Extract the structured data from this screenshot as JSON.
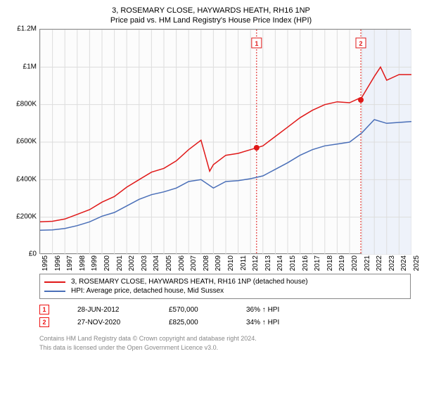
{
  "title_line1": "3, ROSEMARY CLOSE, HAYWARDS HEATH, RH16 1NP",
  "title_line2": "Price paid vs. HM Land Registry's House Price Index (HPI)",
  "chart": {
    "type": "line",
    "background_color": "#fcfcfc",
    "grid_color": "#dddddd",
    "axis_color": "#888888",
    "shaded_region": {
      "x_start": 2021,
      "x_end": 2025,
      "fill": "#eef2fa"
    },
    "xlim": [
      1995,
      2025
    ],
    "ylim": [
      0,
      1200000
    ],
    "ytick_step": 200000,
    "y_ticks": [
      "£0",
      "£200K",
      "£400K",
      "£600K",
      "£800K",
      "£1M",
      "£1.2M"
    ],
    "x_ticks": [
      "1995",
      "1996",
      "1997",
      "1998",
      "1999",
      "2000",
      "2001",
      "2002",
      "2003",
      "2004",
      "2005",
      "2006",
      "2007",
      "2008",
      "2009",
      "2010",
      "2011",
      "2012",
      "2013",
      "2014",
      "2015",
      "2016",
      "2017",
      "2018",
      "2019",
      "2020",
      "2021",
      "2022",
      "2023",
      "2024",
      "2025"
    ],
    "series": [
      {
        "name": "price_paid",
        "label": "3, ROSEMARY CLOSE, HAYWARDS HEATH, RH16 1NP (detached house)",
        "color": "#e01818",
        "line_width": 1.5,
        "data": [
          [
            1995,
            175000
          ],
          [
            1996,
            178000
          ],
          [
            1997,
            190000
          ],
          [
            1998,
            215000
          ],
          [
            1999,
            240000
          ],
          [
            2000,
            280000
          ],
          [
            2001,
            310000
          ],
          [
            2002,
            360000
          ],
          [
            2003,
            400000
          ],
          [
            2004,
            440000
          ],
          [
            2005,
            460000
          ],
          [
            2006,
            500000
          ],
          [
            2007,
            560000
          ],
          [
            2008,
            610000
          ],
          [
            2008.7,
            445000
          ],
          [
            2009,
            480000
          ],
          [
            2010,
            530000
          ],
          [
            2011,
            540000
          ],
          [
            2012,
            560000
          ],
          [
            2013,
            580000
          ],
          [
            2014,
            630000
          ],
          [
            2015,
            680000
          ],
          [
            2016,
            730000
          ],
          [
            2017,
            770000
          ],
          [
            2018,
            800000
          ],
          [
            2019,
            815000
          ],
          [
            2020,
            810000
          ],
          [
            2021,
            840000
          ],
          [
            2022,
            950000
          ],
          [
            2022.5,
            1000000
          ],
          [
            2023,
            930000
          ],
          [
            2024,
            960000
          ],
          [
            2025,
            960000
          ]
        ],
        "markers": [
          {
            "x": 2012.49,
            "y": 570000,
            "label": "1"
          },
          {
            "x": 2020.91,
            "y": 825000,
            "label": "2"
          }
        ]
      },
      {
        "name": "hpi",
        "label": "HPI: Average price, detached house, Mid Sussex",
        "color": "#4a6fb8",
        "line_width": 1.5,
        "data": [
          [
            1995,
            130000
          ],
          [
            1996,
            132000
          ],
          [
            1997,
            140000
          ],
          [
            1998,
            155000
          ],
          [
            1999,
            175000
          ],
          [
            2000,
            205000
          ],
          [
            2001,
            225000
          ],
          [
            2002,
            260000
          ],
          [
            2003,
            295000
          ],
          [
            2004,
            320000
          ],
          [
            2005,
            335000
          ],
          [
            2006,
            355000
          ],
          [
            2007,
            390000
          ],
          [
            2008,
            400000
          ],
          [
            2009,
            355000
          ],
          [
            2010,
            390000
          ],
          [
            2011,
            395000
          ],
          [
            2012,
            405000
          ],
          [
            2013,
            420000
          ],
          [
            2014,
            455000
          ],
          [
            2015,
            490000
          ],
          [
            2016,
            530000
          ],
          [
            2017,
            560000
          ],
          [
            2018,
            580000
          ],
          [
            2019,
            590000
          ],
          [
            2020,
            600000
          ],
          [
            2021,
            650000
          ],
          [
            2022,
            720000
          ],
          [
            2023,
            700000
          ],
          [
            2024,
            705000
          ],
          [
            2025,
            710000
          ]
        ]
      }
    ],
    "marker_lines": [
      {
        "x": 2012.49,
        "color": "#e01818",
        "dash": "2,2"
      },
      {
        "x": 2020.91,
        "color": "#e01818",
        "dash": "2,2"
      }
    ]
  },
  "legend": {
    "series1_label": "3, ROSEMARY CLOSE, HAYWARDS HEATH, RH16 1NP (detached house)",
    "series1_color": "#e01818",
    "series2_label": "HPI: Average price, detached house, Mid Sussex",
    "series2_color": "#4a6fb8"
  },
  "marker_table": {
    "rows": [
      {
        "num": "1",
        "date": "28-JUN-2012",
        "price": "£570,000",
        "pct": "36% ↑ HPI"
      },
      {
        "num": "2",
        "date": "27-NOV-2020",
        "price": "£825,000",
        "pct": "34% ↑ HPI"
      }
    ]
  },
  "footer_line1": "Contains HM Land Registry data © Crown copyright and database right 2024.",
  "footer_line2": "This data is licensed under the Open Government Licence v3.0."
}
